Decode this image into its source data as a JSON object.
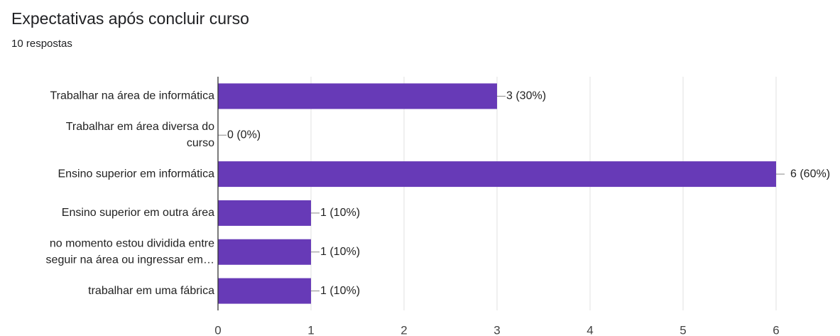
{
  "chart_data": {
    "type": "barh",
    "title": "Expectativas após concluir curso",
    "subtitle": "10 respostas",
    "categories": [
      [
        "Trabalhar na área de informática"
      ],
      [
        "Trabalhar em área diversa do",
        "curso"
      ],
      [
        "Ensino superior em informática"
      ],
      [
        "Ensino superior em outra área"
      ],
      [
        "no momento estou dividida entre",
        "seguir na área ou ingressar em…"
      ],
      [
        "trabalhar em uma fábrica"
      ]
    ],
    "values": [
      3,
      0,
      6,
      1,
      1,
      1
    ],
    "value_labels": [
      "3 (30%)",
      "0 (0%)",
      "6 (60%)",
      "1 (10%)",
      "1 (10%)",
      "1 (10%)"
    ],
    "color": "#673ab7",
    "xlim": [
      0,
      6
    ],
    "xticks": [
      0,
      1,
      2,
      3,
      4,
      5,
      6
    ],
    "grid": true
  }
}
